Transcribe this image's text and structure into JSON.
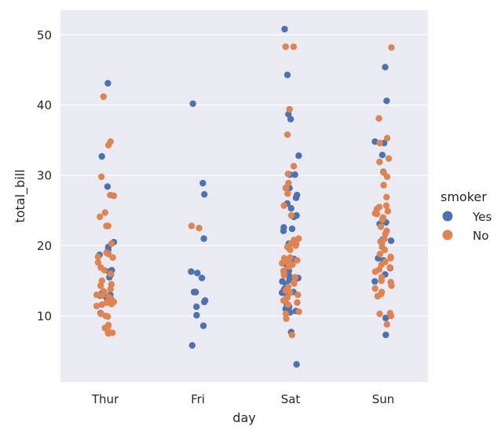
{
  "chart_data": {
    "type": "scatter",
    "style": "strip",
    "xlabel": "day",
    "ylabel": "total_bill",
    "categories": [
      "Thur",
      "Fri",
      "Sat",
      "Sun"
    ],
    "ylim": [
      0.6,
      53.5
    ],
    "yticks": [
      10,
      20,
      30,
      40,
      50
    ],
    "grid": true,
    "background": "#eaeaf2",
    "legend": {
      "title": "smoker",
      "placement": "right",
      "entries": [
        {
          "label": "Yes",
          "color": "#4c72b0"
        },
        {
          "label": "No",
          "color": "#dd8452"
        }
      ]
    },
    "series": [
      {
        "name": "Yes",
        "color": "#4c72b0",
        "points": [
          [
            "Thur",
            43.1
          ],
          [
            "Thur",
            32.7
          ],
          [
            "Thur",
            28.4
          ],
          [
            "Thur",
            20.5
          ],
          [
            "Thur",
            19.8
          ],
          [
            "Thur",
            19.4
          ],
          [
            "Thur",
            18.7
          ],
          [
            "Thur",
            16.5
          ],
          [
            "Thur",
            16.3
          ],
          [
            "Thur",
            15.9
          ],
          [
            "Thur",
            15.5
          ],
          [
            "Thur",
            13.3
          ],
          [
            "Thur",
            13.0
          ],
          [
            "Thur",
            12.9
          ],
          [
            "Thur",
            12.6
          ],
          [
            "Thur",
            10.4
          ],
          [
            "Fri",
            40.2
          ],
          [
            "Fri",
            28.9
          ],
          [
            "Fri",
            27.3
          ],
          [
            "Fri",
            21.0
          ],
          [
            "Fri",
            16.3
          ],
          [
            "Fri",
            16.1
          ],
          [
            "Fri",
            15.4
          ],
          [
            "Fri",
            13.4
          ],
          [
            "Fri",
            13.4
          ],
          [
            "Fri",
            13.4
          ],
          [
            "Fri",
            12.2
          ],
          [
            "Fri",
            12.0
          ],
          [
            "Fri",
            11.3
          ],
          [
            "Fri",
            10.1
          ],
          [
            "Fri",
            8.6
          ],
          [
            "Fri",
            5.8
          ],
          [
            "Sat",
            50.8
          ],
          [
            "Sat",
            44.3
          ],
          [
            "Sat",
            38.7
          ],
          [
            "Sat",
            38.0
          ],
          [
            "Sat",
            32.8
          ],
          [
            "Sat",
            30.1
          ],
          [
            "Sat",
            30.1
          ],
          [
            "Sat",
            28.2
          ],
          [
            "Sat",
            28.2
          ],
          [
            "Sat",
            27.2
          ],
          [
            "Sat",
            26.8
          ],
          [
            "Sat",
            26.0
          ],
          [
            "Sat",
            25.3
          ],
          [
            "Sat",
            24.3
          ],
          [
            "Sat",
            24.1
          ],
          [
            "Sat",
            22.6
          ],
          [
            "Sat",
            22.4
          ],
          [
            "Sat",
            22.1
          ],
          [
            "Sat",
            20.6
          ],
          [
            "Sat",
            20.3
          ],
          [
            "Sat",
            18.1
          ],
          [
            "Sat",
            17.3
          ],
          [
            "Sat",
            16.6
          ],
          [
            "Sat",
            16.4
          ],
          [
            "Sat",
            15.7
          ],
          [
            "Sat",
            15.4
          ],
          [
            "Sat",
            15.1
          ],
          [
            "Sat",
            14.9
          ],
          [
            "Sat",
            14.5
          ],
          [
            "Sat",
            13.8
          ],
          [
            "Sat",
            13.4
          ],
          [
            "Sat",
            13.3
          ],
          [
            "Sat",
            12.8
          ],
          [
            "Sat",
            11.7
          ],
          [
            "Sat",
            11.3
          ],
          [
            "Sat",
            11.0
          ],
          [
            "Sat",
            10.7
          ],
          [
            "Sat",
            10.5
          ],
          [
            "Sat",
            7.7
          ],
          [
            "Sat",
            3.1
          ],
          [
            "Sun",
            45.4
          ],
          [
            "Sun",
            40.6
          ],
          [
            "Sun",
            34.8
          ],
          [
            "Sun",
            34.6
          ],
          [
            "Sun",
            32.9
          ],
          [
            "Sun",
            30.5
          ],
          [
            "Sun",
            23.3
          ],
          [
            "Sun",
            23.1
          ],
          [
            "Sun",
            20.9
          ],
          [
            "Sun",
            20.7
          ],
          [
            "Sun",
            18.2
          ],
          [
            "Sun",
            17.9
          ],
          [
            "Sun",
            16.8
          ],
          [
            "Sun",
            15.9
          ],
          [
            "Sun",
            14.9
          ],
          [
            "Sun",
            9.7
          ],
          [
            "Sun",
            7.3
          ]
        ]
      },
      {
        "name": "No",
        "color": "#dd8452",
        "points": [
          [
            "Thur",
            41.2
          ],
          [
            "Thur",
            34.8
          ],
          [
            "Thur",
            34.3
          ],
          [
            "Thur",
            29.8
          ],
          [
            "Thur",
            27.2
          ],
          [
            "Thur",
            27.1
          ],
          [
            "Thur",
            24.7
          ],
          [
            "Thur",
            24.1
          ],
          [
            "Thur",
            22.8
          ],
          [
            "Thur",
            22.8
          ],
          [
            "Thur",
            20.3
          ],
          [
            "Thur",
            19.0
          ],
          [
            "Thur",
            18.8
          ],
          [
            "Thur",
            18.4
          ],
          [
            "Thur",
            18.3
          ],
          [
            "Thur",
            17.6
          ],
          [
            "Thur",
            16.9
          ],
          [
            "Thur",
            16.5
          ],
          [
            "Thur",
            16.0
          ],
          [
            "Thur",
            15.0
          ],
          [
            "Thur",
            14.5
          ],
          [
            "Thur",
            14.3
          ],
          [
            "Thur",
            13.8
          ],
          [
            "Thur",
            13.5
          ],
          [
            "Thur",
            13.4
          ],
          [
            "Thur",
            13.0
          ],
          [
            "Thur",
            12.9
          ],
          [
            "Thur",
            12.7
          ],
          [
            "Thur",
            12.5
          ],
          [
            "Thur",
            12.4
          ],
          [
            "Thur",
            12.0
          ],
          [
            "Thur",
            11.9
          ],
          [
            "Thur",
            11.7
          ],
          [
            "Thur",
            11.6
          ],
          [
            "Thur",
            11.4
          ],
          [
            "Thur",
            10.3
          ],
          [
            "Thur",
            10.0
          ],
          [
            "Thur",
            9.9
          ],
          [
            "Thur",
            8.7
          ],
          [
            "Thur",
            8.5
          ],
          [
            "Thur",
            8.3
          ],
          [
            "Thur",
            7.8
          ],
          [
            "Thur",
            7.6
          ],
          [
            "Thur",
            7.5
          ],
          [
            "Fri",
            22.8
          ],
          [
            "Fri",
            22.5
          ],
          [
            "Sat",
            48.3
          ],
          [
            "Sat",
            48.3
          ],
          [
            "Sat",
            39.4
          ],
          [
            "Sat",
            35.8
          ],
          [
            "Sat",
            31.3
          ],
          [
            "Sat",
            30.2
          ],
          [
            "Sat",
            28.9
          ],
          [
            "Sat",
            28.2
          ],
          [
            "Sat",
            27.4
          ],
          [
            "Sat",
            25.7
          ],
          [
            "Sat",
            24.3
          ],
          [
            "Sat",
            21.0
          ],
          [
            "Sat",
            20.8
          ],
          [
            "Sat",
            20.3
          ],
          [
            "Sat",
            20.2
          ],
          [
            "Sat",
            20.0
          ],
          [
            "Sat",
            19.8
          ],
          [
            "Sat",
            19.4
          ],
          [
            "Sat",
            18.3
          ],
          [
            "Sat",
            18.2
          ],
          [
            "Sat",
            17.9
          ],
          [
            "Sat",
            17.7
          ],
          [
            "Sat",
            17.5
          ],
          [
            "Sat",
            17.3
          ],
          [
            "Sat",
            17.0
          ],
          [
            "Sat",
            16.4
          ],
          [
            "Sat",
            16.2
          ],
          [
            "Sat",
            16.0
          ],
          [
            "Sat",
            15.8
          ],
          [
            "Sat",
            15.5
          ],
          [
            "Sat",
            14.8
          ],
          [
            "Sat",
            14.6
          ],
          [
            "Sat",
            14.1
          ],
          [
            "Sat",
            13.6
          ],
          [
            "Sat",
            13.3
          ],
          [
            "Sat",
            13.0
          ],
          [
            "Sat",
            12.6
          ],
          [
            "Sat",
            12.2
          ],
          [
            "Sat",
            11.9
          ],
          [
            "Sat",
            11.6
          ],
          [
            "Sat",
            10.6
          ],
          [
            "Sat",
            10.3
          ],
          [
            "Sat",
            9.6
          ],
          [
            "Sat",
            7.3
          ],
          [
            "Sun",
            48.2
          ],
          [
            "Sun",
            38.1
          ],
          [
            "Sun",
            35.3
          ],
          [
            "Sun",
            34.6
          ],
          [
            "Sun",
            32.4
          ],
          [
            "Sun",
            31.9
          ],
          [
            "Sun",
            30.4
          ],
          [
            "Sun",
            29.8
          ],
          [
            "Sun",
            28.6
          ],
          [
            "Sun",
            26.9
          ],
          [
            "Sun",
            25.7
          ],
          [
            "Sun",
            25.5
          ],
          [
            "Sun",
            25.2
          ],
          [
            "Sun",
            24.9
          ],
          [
            "Sun",
            24.6
          ],
          [
            "Sun",
            24.5
          ],
          [
            "Sun",
            24.0
          ],
          [
            "Sun",
            23.7
          ],
          [
            "Sun",
            22.7
          ],
          [
            "Sun",
            22.1
          ],
          [
            "Sun",
            21.7
          ],
          [
            "Sun",
            21.0
          ],
          [
            "Sun",
            20.6
          ],
          [
            "Sun",
            20.3
          ],
          [
            "Sun",
            19.8
          ],
          [
            "Sun",
            19.4
          ],
          [
            "Sun",
            18.8
          ],
          [
            "Sun",
            18.4
          ],
          [
            "Sun",
            18.2
          ],
          [
            "Sun",
            17.7
          ],
          [
            "Sun",
            17.3
          ],
          [
            "Sun",
            16.9
          ],
          [
            "Sun",
            16.6
          ],
          [
            "Sun",
            16.3
          ],
          [
            "Sun",
            15.5
          ],
          [
            "Sun",
            15.0
          ],
          [
            "Sun",
            14.8
          ],
          [
            "Sun",
            14.3
          ],
          [
            "Sun",
            13.9
          ],
          [
            "Sun",
            13.4
          ],
          [
            "Sun",
            13.1
          ],
          [
            "Sun",
            12.8
          ],
          [
            "Sun",
            10.4
          ],
          [
            "Sun",
            10.3
          ],
          [
            "Sun",
            10.0
          ],
          [
            "Sun",
            8.8
          ]
        ]
      }
    ]
  }
}
